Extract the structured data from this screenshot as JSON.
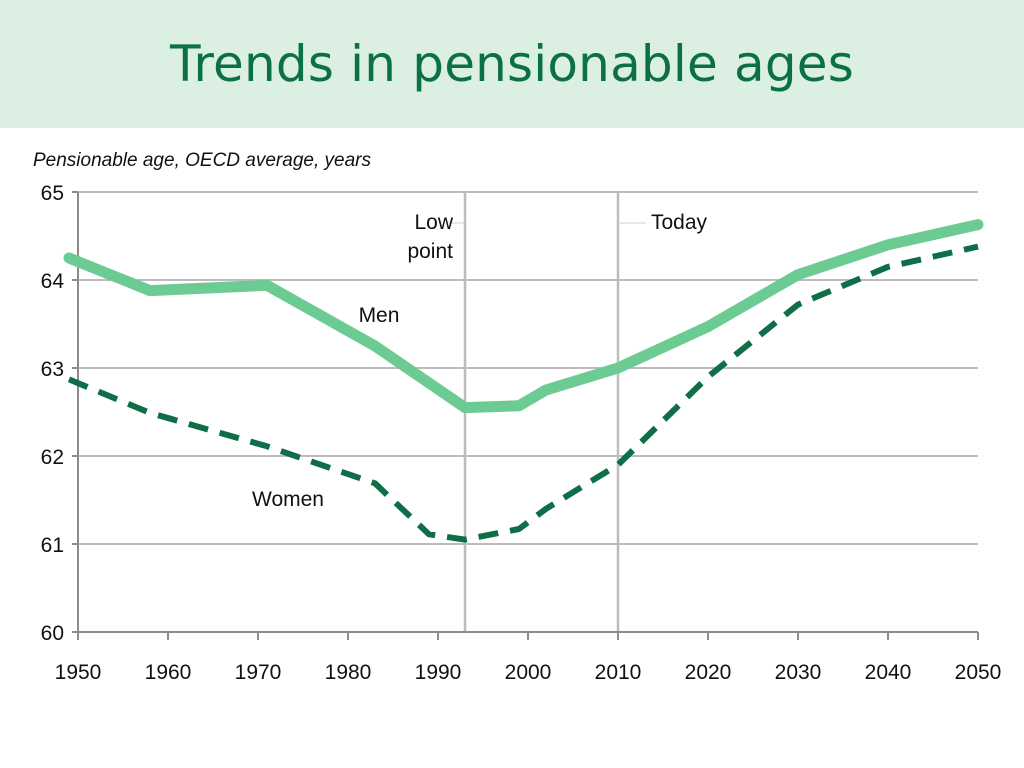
{
  "title": "Trends in pensionable ages",
  "chart_data": {
    "type": "line",
    "subtitle": "Pensionable age, OECD average, years",
    "xlim": [
      1950,
      2050
    ],
    "ylim": [
      60,
      65
    ],
    "x_ticks": [
      1950,
      1960,
      1970,
      1980,
      1990,
      2000,
      2010,
      2020,
      2030,
      2040,
      2050
    ],
    "y_ticks": [
      60,
      61,
      62,
      63,
      64,
      65
    ],
    "grid": "horizontal",
    "vertical_markers": [
      {
        "x": 1993,
        "label": [
          "Low",
          "point"
        ]
      },
      {
        "x": 2010,
        "label": [
          "Today"
        ]
      }
    ],
    "series": [
      {
        "name": "Men",
        "color": "#6ccb93",
        "style": "solid",
        "x": [
          1949,
          1958,
          1971,
          1983,
          1993,
          1999,
          2002,
          2010,
          2020,
          2030,
          2040,
          2050
        ],
        "y": [
          64.25,
          63.88,
          63.94,
          63.25,
          62.55,
          62.57,
          62.75,
          63.0,
          63.47,
          64.06,
          64.4,
          64.63
        ]
      },
      {
        "name": "Women",
        "color": "#0d6e47",
        "style": "dashed",
        "x": [
          1949,
          1958,
          1971,
          1983,
          1989,
          1993,
          1999,
          2002,
          2010,
          2020,
          2030,
          2040,
          2050
        ],
        "y": [
          62.87,
          62.49,
          62.11,
          61.69,
          61.11,
          61.05,
          61.17,
          61.4,
          61.9,
          62.9,
          63.72,
          64.15,
          64.38
        ]
      }
    ],
    "annotations": [
      {
        "text": "Men",
        "series": "Men"
      },
      {
        "text": "Women",
        "series": "Women"
      }
    ]
  }
}
